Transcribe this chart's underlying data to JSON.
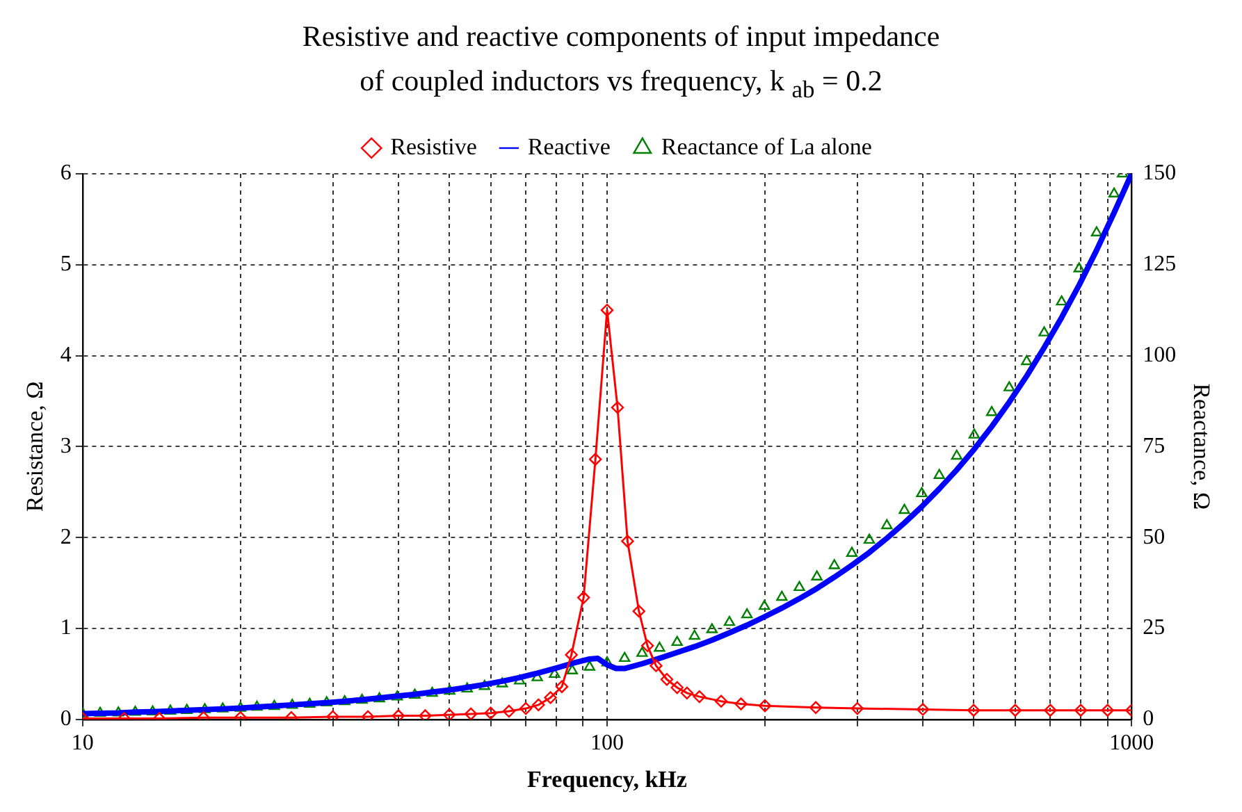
{
  "chart_data": {
    "type": "line",
    "title": "Resistive and reactive components of input impedance\nof coupled inductors vs frequency, k $_{ab}$ = 0.2",
    "xlabel": "Frequency, kHz",
    "ylabel": "Resistance, Ω",
    "y2label": "Reactance, Ω",
    "log": "x",
    "xlim": [
      10,
      1000
    ],
    "xticks": [
      10,
      {
        "value": 20,
        "label": null
      },
      {
        "value": 30,
        "label": null
      },
      {
        "value": 40,
        "label": null
      },
      {
        "value": 50,
        "label": null
      },
      {
        "value": 60,
        "label": null
      },
      {
        "value": 70,
        "label": null
      },
      {
        "value": 80,
        "label": null
      },
      {
        "value": 90,
        "label": null
      },
      100,
      {
        "value": 200,
        "label": null
      },
      {
        "value": 300,
        "label": null
      },
      {
        "value": 400,
        "label": null
      },
      {
        "value": 500,
        "label": null
      },
      {
        "value": 600,
        "label": null
      },
      {
        "value": 700,
        "label": null
      },
      {
        "value": 800,
        "label": null
      },
      {
        "value": 900,
        "label": null
      },
      1000
    ],
    "ylim": [
      0,
      6
    ],
    "yticks": [
      0,
      1,
      2,
      3,
      4,
      5,
      6
    ],
    "y2lim": [
      0,
      150
    ],
    "y2ticks": [
      0,
      25,
      50,
      75,
      100,
      125,
      150
    ],
    "grid": true,
    "legend": "top",
    "line_style": "solid",
    "series": [
      {
        "name": "Resistive",
        "type": "line",
        "marker": "diamond",
        "color": "#ff0000",
        "x": [
          10,
          12,
          14,
          17,
          20,
          25,
          30,
          35,
          40,
          45,
          50,
          55,
          60,
          65,
          70,
          74,
          78,
          82,
          85.5,
          90.2,
          95,
          100,
          104.7,
          109.4,
          115,
          119.4,
          124,
          130,
          136,
          142,
          150,
          165,
          180,
          200,
          250,
          300,
          400,
          500,
          600,
          700,
          800,
          900,
          1000
        ],
        "values": [
          0.01,
          0.01,
          0.01,
          0.02,
          0.02,
          0.02,
          0.03,
          0.03,
          0.04,
          0.04,
          0.05,
          0.06,
          0.07,
          0.09,
          0.12,
          0.16,
          0.24,
          0.36,
          0.71,
          1.34,
          2.86,
          4.5,
          3.43,
          1.96,
          1.19,
          0.81,
          0.59,
          0.44,
          0.35,
          0.29,
          0.25,
          0.2,
          0.17,
          0.15,
          0.13,
          0.12,
          0.11,
          0.1,
          0.1,
          0.1,
          0.1,
          0.1,
          0.1
        ]
      },
      {
        "name": "Reactive",
        "type": "line",
        "marker": "none",
        "axis": "y2",
        "color": "#0000ff",
        "x": [
          10,
          10.8,
          11.7,
          12.6,
          13.6,
          14.7,
          15.8,
          17.1,
          18.5,
          20,
          21.5,
          23.2,
          25.1,
          27.1,
          29.2,
          31.6,
          34.1,
          36.8,
          39.8,
          43,
          46.4,
          50.1,
          54.1,
          58.4,
          63.1,
          68.1,
          73.6,
          79.4,
          85.8,
          92.6,
          96,
          100,
          104,
          108,
          116.6,
          125.9,
          136,
          146.8,
          158.5,
          171.1,
          184.8,
          199.5,
          215.4,
          232.6,
          251.2,
          271.2,
          292.9,
          316.2,
          341.5,
          368.8,
          398.1,
          429.9,
          464.2,
          501.2,
          541.2,
          584.4,
          631,
          681.3,
          735.6,
          794.3,
          857.7,
          926.1,
          1000
        ],
        "values": [
          1.6,
          1.7,
          1.8,
          2.0,
          2.1,
          2.3,
          2.5,
          2.7,
          2.9,
          3.1,
          3.4,
          3.7,
          4.0,
          4.3,
          4.6,
          5.0,
          5.4,
          5.9,
          6.4,
          6.9,
          7.5,
          8.1,
          8.8,
          9.6,
          10.5,
          11.5,
          12.7,
          14.0,
          15.4,
          16.6,
          16.8,
          15.0,
          14.0,
          14.0,
          15.3,
          16.8,
          18.4,
          20.0,
          21.8,
          23.8,
          25.9,
          28.2,
          30.6,
          33.2,
          36.0,
          39.1,
          42.4,
          45.9,
          49.8,
          54.0,
          58.5,
          63.4,
          68.6,
          74.3,
          80.5,
          87.2,
          94.4,
          102.2,
          110.5,
          119.4,
          129.0,
          139.3,
          150
        ]
      },
      {
        "name": "Reactance of La alone",
        "type": "scatter",
        "marker": "triangle",
        "axis": "y2",
        "color": "#008000",
        "x": [
          10,
          10.8,
          11.7,
          12.6,
          13.6,
          14.7,
          15.8,
          17.1,
          18.5,
          20,
          21.5,
          23.2,
          25.1,
          27.1,
          29.2,
          31.6,
          34.1,
          36.8,
          39.8,
          43,
          46.4,
          50.1,
          54.1,
          58.4,
          63.1,
          68.1,
          73.6,
          79.4,
          85.8,
          92.6,
          100,
          108,
          116.6,
          125.9,
          136,
          146.8,
          158.5,
          171.1,
          184.8,
          199.5,
          215.4,
          232.6,
          251.2,
          271.2,
          292.9,
          316.2,
          341.5,
          368.8,
          398.1,
          429.9,
          464.2,
          501.2,
          541.2,
          584.4,
          631,
          681.3,
          735.6,
          794.3,
          857.7,
          926.1,
          961
        ],
        "values": [
          1.6,
          1.7,
          1.8,
          2.0,
          2.1,
          2.3,
          2.5,
          2.7,
          2.9,
          3.1,
          3.4,
          3.6,
          3.9,
          4.2,
          4.6,
          4.9,
          5.3,
          5.7,
          6.2,
          6.7,
          7.2,
          7.8,
          8.4,
          9.1,
          9.8,
          10.6,
          11.5,
          12.4,
          13.4,
          14.4,
          15.6,
          16.8,
          18.2,
          19.6,
          21.2,
          22.9,
          24.7,
          26.7,
          28.8,
          31.1,
          33.6,
          36.3,
          39.2,
          42.3,
          45.7,
          49.3,
          53.3,
          57.5,
          62.1,
          67.1,
          72.4,
          78.2,
          84.4,
          91.2,
          98.4,
          106.3,
          114.8,
          123.9,
          133.8,
          144.5,
          150
        ]
      }
    ]
  }
}
